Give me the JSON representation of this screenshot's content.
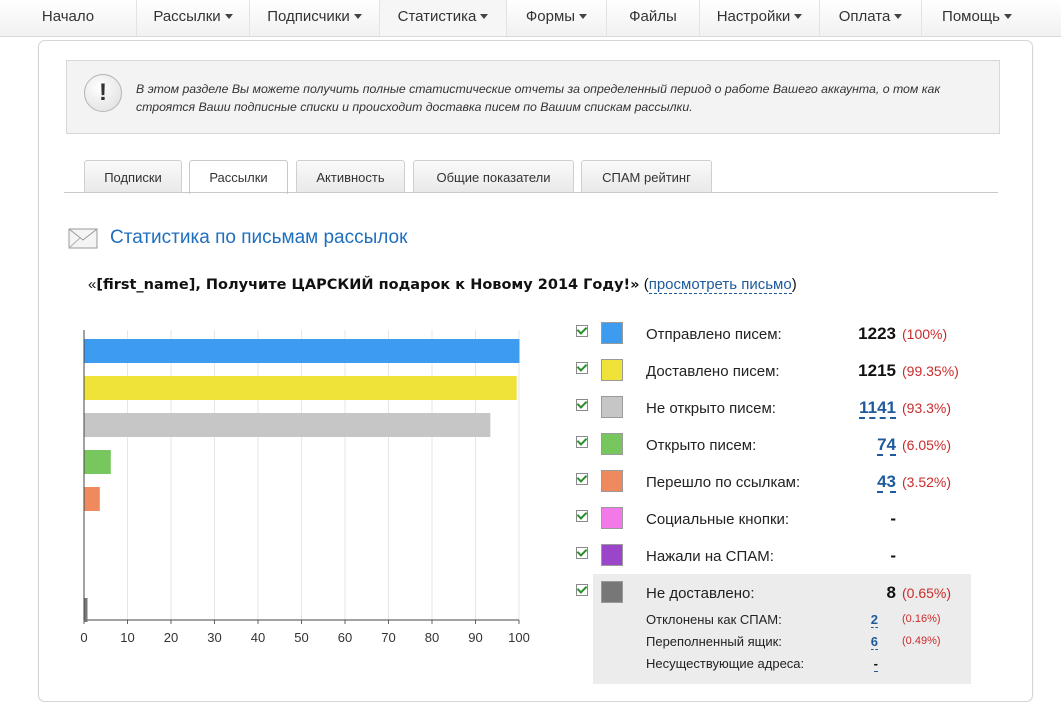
{
  "nav": [
    {
      "label": "Начало",
      "dropdown": false
    },
    {
      "label": "Рассылки",
      "dropdown": true
    },
    {
      "label": "Подписчики",
      "dropdown": true
    },
    {
      "label": "Статистика",
      "dropdown": true
    },
    {
      "label": "Формы",
      "dropdown": true
    },
    {
      "label": "Файлы",
      "dropdown": false
    },
    {
      "label": "Настройки",
      "dropdown": true
    },
    {
      "label": "Оплата",
      "dropdown": true
    },
    {
      "label": "Помощь",
      "dropdown": true
    }
  ],
  "info": {
    "icon": "!",
    "text": "В этом разделе Вы можете получить полные статистические отчеты за определенный период о работе Вашего аккаунта, о том как строятся Ваши подписные списки и происходит доставка писем по Вашим спискам рассылки."
  },
  "tabs": [
    "Подписки",
    "Рассылки",
    "Активность",
    "Общие показатели",
    "СПАМ рейтинг"
  ],
  "active_tab": "Рассылки",
  "section": {
    "title": "Статистика по письмам рассылок"
  },
  "email": {
    "open_quote": "«",
    "subject": "[first_name], Получите ЦАРСКИЙ подарок к Новому 2014 Году!»",
    "open_paren": " (",
    "view_link": "просмотреть письмо",
    "close_paren": ")"
  },
  "legend": [
    {
      "label": "Отправлено писем:",
      "value": "1223",
      "pct": "(100%)",
      "color": "#3d9cf0",
      "link": false
    },
    {
      "label": "Доставлено писем:",
      "value": "1215",
      "pct": "(99.35%)",
      "color": "#efe33a",
      "link": false
    },
    {
      "label": "Не открыто писем:",
      "value": "1141",
      "pct": "(93.3%)",
      "color": "#c6c6c6",
      "link": true
    },
    {
      "label": "Открыто писем:",
      "value": "74",
      "pct": "(6.05%)",
      "color": "#77c75e",
      "link": true
    },
    {
      "label": "Перешло по ссылкам:",
      "value": "43",
      "pct": "(3.52%)",
      "color": "#ef8a5f",
      "link": true
    },
    {
      "label": "Социальные кнопки:",
      "value": "-",
      "pct": "",
      "color": "#f27ae8",
      "link": false
    },
    {
      "label": "Нажали на СПАМ:",
      "value": "-",
      "pct": "",
      "color": "#9b46c8",
      "link": false
    },
    {
      "label": "Не доставлено:",
      "value": "8",
      "pct": "(0.65%)",
      "color": "#777777",
      "link": false
    }
  ],
  "sublegend": [
    {
      "label": "Отклонены как СПАМ:",
      "value": "2",
      "pct": "(0.16%)"
    },
    {
      "label": "Переполненный ящик:",
      "value": "6",
      "pct": "(0.49%)"
    },
    {
      "label": "Несуществующие адреса:",
      "value": "-",
      "pct": ""
    }
  ],
  "chart_data": {
    "type": "bar",
    "orientation": "horizontal",
    "categories": [
      "Отправлено писем",
      "Доставлено писем",
      "Не открыто писем",
      "Открыто писем",
      "Перешло по ссылкам",
      "Социальные кнопки",
      "Нажали на СПАМ",
      "Не доставлено"
    ],
    "values": [
      100,
      99.35,
      93.3,
      6.05,
      3.52,
      0,
      0,
      0.65
    ],
    "colors": [
      "#3d9cf0",
      "#efe33a",
      "#c6c6c6",
      "#77c75e",
      "#ef8a5f",
      "#f27ae8",
      "#9b46c8",
      "#777777"
    ],
    "xlim": [
      0,
      100
    ],
    "xticks": [
      0,
      10,
      20,
      30,
      40,
      50,
      60,
      70,
      80,
      90,
      100
    ],
    "grid": true
  }
}
